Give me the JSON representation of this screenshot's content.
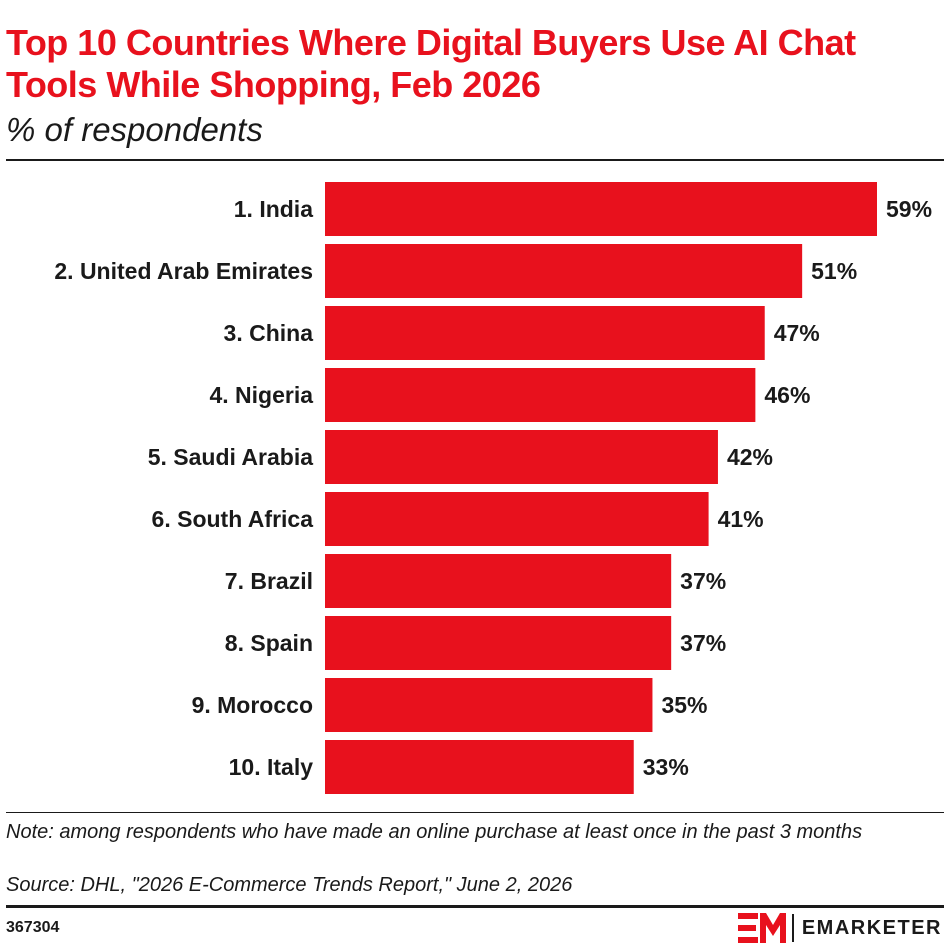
{
  "header": {
    "title": "Top 10 Countries Where Digital Buyers Use AI Chat Tools While Shopping, Feb 2026",
    "subtitle": "% of respondents"
  },
  "footer": {
    "note": "Note: among respondents who have made an online purchase at least once in the past 3 months",
    "source": "Source: DHL, \"2026 E-Commerce Trends Report,\" June 2, 2026",
    "chart_id": "367304",
    "brand": "EMARKETER",
    "brand_color": "#e8111d"
  },
  "chart_data": {
    "type": "bar",
    "orientation": "horizontal",
    "title": "Top 10 Countries Where Digital Buyers Use AI Chat Tools While Shopping, Feb 2026",
    "subtitle": "% of respondents",
    "categories": [
      "1. India",
      "2. United Arab Emirates",
      "3. China",
      "4. Nigeria",
      "5. Saudi Arabia",
      "6. South Africa",
      "7. Brazil",
      "8. Spain",
      "9. Morocco",
      "10. Italy"
    ],
    "values": [
      59,
      51,
      47,
      46,
      42,
      41,
      37,
      37,
      35,
      33
    ],
    "value_labels": [
      "59%",
      "51%",
      "47%",
      "46%",
      "42%",
      "41%",
      "37%",
      "37%",
      "35%",
      "33%"
    ],
    "unit": "%",
    "xlim": [
      0,
      59
    ],
    "grid": false,
    "legend": "none",
    "bar_color": "#e8111d"
  }
}
